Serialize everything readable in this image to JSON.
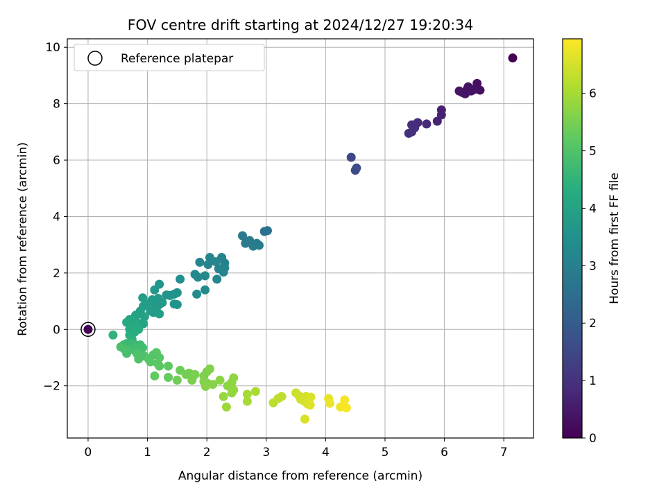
{
  "chart_data": {
    "type": "scatter",
    "title": "FOV centre drift starting at 2024/12/27 19:20:34",
    "xlabel": "Angular distance from reference (arcmin)",
    "ylabel": "Rotation from reference (arcmin)",
    "xlim": [
      -0.35,
      7.5
    ],
    "ylim": [
      -3.85,
      10.3
    ],
    "xticks": [
      0,
      1,
      2,
      3,
      4,
      5,
      6,
      7
    ],
    "xtick_labels": [
      "0",
      "1",
      "2",
      "3",
      "4",
      "5",
      "6",
      "7"
    ],
    "yticks": [
      -2,
      0,
      2,
      4,
      6,
      8,
      10
    ],
    "ytick_labels": [
      "−2",
      "0",
      "2",
      "4",
      "6",
      "8",
      "10"
    ],
    "grid": true,
    "legend": {
      "location": "upper-left",
      "entries": [
        "Reference platepar"
      ]
    },
    "reference_point": {
      "x": 0,
      "y": 0,
      "label": "Reference platepar"
    },
    "colorbar": {
      "label": "Hours from first FF file",
      "colormap": "viridis",
      "range": [
        0,
        6.95
      ],
      "ticks": [
        0,
        1,
        2,
        3,
        4,
        5,
        6
      ],
      "tick_labels": [
        "0",
        "1",
        "2",
        "3",
        "4",
        "5",
        "6"
      ]
    },
    "points": [
      {
        "x": 7.15,
        "y": 9.62,
        "t": 0.0
      },
      {
        "x": 6.6,
        "y": 8.48,
        "t": 0.3
      },
      {
        "x": 6.55,
        "y": 8.72,
        "t": 0.3
      },
      {
        "x": 6.5,
        "y": 8.5,
        "t": 0.35
      },
      {
        "x": 6.45,
        "y": 8.45,
        "t": 0.35
      },
      {
        "x": 6.4,
        "y": 8.6,
        "t": 0.35
      },
      {
        "x": 6.35,
        "y": 8.35,
        "t": 0.4
      },
      {
        "x": 6.3,
        "y": 8.4,
        "t": 0.4
      },
      {
        "x": 6.25,
        "y": 8.45,
        "t": 0.4
      },
      {
        "x": 6.38,
        "y": 8.5,
        "t": 0.38
      },
      {
        "x": 5.95,
        "y": 7.78,
        "t": 0.65
      },
      {
        "x": 5.95,
        "y": 7.6,
        "t": 0.65
      },
      {
        "x": 5.88,
        "y": 7.38,
        "t": 0.7
      },
      {
        "x": 5.7,
        "y": 7.28,
        "t": 0.8
      },
      {
        "x": 5.55,
        "y": 7.33,
        "t": 0.85
      },
      {
        "x": 5.5,
        "y": 7.15,
        "t": 0.9
      },
      {
        "x": 5.45,
        "y": 7.25,
        "t": 0.9
      },
      {
        "x": 5.45,
        "y": 7.0,
        "t": 0.95
      },
      {
        "x": 5.4,
        "y": 6.95,
        "t": 0.95
      },
      {
        "x": 4.43,
        "y": 6.1,
        "t": 1.5
      },
      {
        "x": 4.52,
        "y": 5.72,
        "t": 1.6
      },
      {
        "x": 4.5,
        "y": 5.64,
        "t": 1.6
      },
      {
        "x": 3.02,
        "y": 3.5,
        "t": 2.6
      },
      {
        "x": 2.97,
        "y": 3.47,
        "t": 2.6
      },
      {
        "x": 2.6,
        "y": 3.32,
        "t": 2.8
      },
      {
        "x": 2.65,
        "y": 3.05,
        "t": 2.85
      },
      {
        "x": 2.72,
        "y": 3.15,
        "t": 2.85
      },
      {
        "x": 2.78,
        "y": 2.95,
        "t": 2.9
      },
      {
        "x": 2.84,
        "y": 3.05,
        "t": 2.9
      },
      {
        "x": 2.88,
        "y": 2.98,
        "t": 2.9
      },
      {
        "x": 2.25,
        "y": 2.55,
        "t": 3.05
      },
      {
        "x": 2.3,
        "y": 2.35,
        "t": 3.05
      },
      {
        "x": 2.3,
        "y": 2.18,
        "t": 3.1
      },
      {
        "x": 2.28,
        "y": 2.03,
        "t": 3.1
      },
      {
        "x": 2.2,
        "y": 2.15,
        "t": 3.1
      },
      {
        "x": 2.15,
        "y": 2.4,
        "t": 3.1
      },
      {
        "x": 2.05,
        "y": 2.55,
        "t": 3.15
      },
      {
        "x": 2.02,
        "y": 2.3,
        "t": 3.15
      },
      {
        "x": 1.88,
        "y": 2.38,
        "t": 3.2
      },
      {
        "x": 2.17,
        "y": 1.78,
        "t": 3.2
      },
      {
        "x": 1.97,
        "y": 1.9,
        "t": 3.25
      },
      {
        "x": 1.8,
        "y": 1.95,
        "t": 3.25
      },
      {
        "x": 1.85,
        "y": 1.85,
        "t": 3.25
      },
      {
        "x": 1.97,
        "y": 1.4,
        "t": 3.3
      },
      {
        "x": 1.83,
        "y": 1.25,
        "t": 3.3
      },
      {
        "x": 1.55,
        "y": 1.78,
        "t": 3.45
      },
      {
        "x": 1.5,
        "y": 1.3,
        "t": 3.5
      },
      {
        "x": 1.45,
        "y": 1.25,
        "t": 3.5
      },
      {
        "x": 1.38,
        "y": 1.2,
        "t": 3.55
      },
      {
        "x": 1.32,
        "y": 1.22,
        "t": 3.55
      },
      {
        "x": 1.45,
        "y": 0.9,
        "t": 3.6
      },
      {
        "x": 1.5,
        "y": 0.88,
        "t": 3.6
      },
      {
        "x": 1.2,
        "y": 1.6,
        "t": 3.6
      },
      {
        "x": 1.12,
        "y": 1.4,
        "t": 3.65
      },
      {
        "x": 1.18,
        "y": 1.1,
        "t": 3.7
      },
      {
        "x": 1.25,
        "y": 0.95,
        "t": 3.7
      },
      {
        "x": 1.2,
        "y": 0.88,
        "t": 3.7
      },
      {
        "x": 1.15,
        "y": 0.75,
        "t": 3.75
      },
      {
        "x": 1.08,
        "y": 1.05,
        "t": 3.75
      },
      {
        "x": 1.05,
        "y": 0.95,
        "t": 3.75
      },
      {
        "x": 1.0,
        "y": 0.88,
        "t": 3.8
      },
      {
        "x": 1.05,
        "y": 0.65,
        "t": 3.8
      },
      {
        "x": 1.1,
        "y": 0.6,
        "t": 3.8
      },
      {
        "x": 1.2,
        "y": 0.55,
        "t": 3.85
      },
      {
        "x": 0.92,
        "y": 1.12,
        "t": 3.8
      },
      {
        "x": 0.93,
        "y": 0.82,
        "t": 3.85
      },
      {
        "x": 0.88,
        "y": 0.65,
        "t": 3.9
      },
      {
        "x": 0.85,
        "y": 0.55,
        "t": 3.9
      },
      {
        "x": 0.8,
        "y": 0.5,
        "t": 3.95
      },
      {
        "x": 0.95,
        "y": 0.45,
        "t": 3.95
      },
      {
        "x": 0.93,
        "y": 0.2,
        "t": 4.0
      },
      {
        "x": 0.88,
        "y": 0.2,
        "t": 4.0
      },
      {
        "x": 0.8,
        "y": 0.3,
        "t": 4.05
      },
      {
        "x": 0.75,
        "y": 0.33,
        "t": 4.1
      },
      {
        "x": 0.7,
        "y": 0.35,
        "t": 4.1
      },
      {
        "x": 0.65,
        "y": 0.25,
        "t": 4.15
      },
      {
        "x": 0.72,
        "y": 0.15,
        "t": 4.15
      },
      {
        "x": 0.7,
        "y": 0.0,
        "t": 4.2
      },
      {
        "x": 0.75,
        "y": 0.05,
        "t": 4.2
      },
      {
        "x": 0.85,
        "y": 0.0,
        "t": 4.25
      },
      {
        "x": 0.8,
        "y": 0.15,
        "t": 4.2
      },
      {
        "x": 0.78,
        "y": -0.1,
        "t": 4.3
      },
      {
        "x": 0.7,
        "y": -0.2,
        "t": 4.35
      },
      {
        "x": 0.74,
        "y": -0.35,
        "t": 4.4
      },
      {
        "x": 0.42,
        "y": -0.2,
        "t": 4.5
      },
      {
        "x": 0.6,
        "y": -0.55,
        "t": 4.6
      },
      {
        "x": 0.65,
        "y": -0.5,
        "t": 4.65
      },
      {
        "x": 0.72,
        "y": -0.5,
        "t": 4.7
      },
      {
        "x": 0.8,
        "y": -0.55,
        "t": 4.7
      },
      {
        "x": 0.88,
        "y": -0.55,
        "t": 4.75
      },
      {
        "x": 0.92,
        "y": -0.65,
        "t": 4.8
      },
      {
        "x": 0.82,
        "y": -0.68,
        "t": 4.8
      },
      {
        "x": 0.76,
        "y": -0.72,
        "t": 4.8
      },
      {
        "x": 0.68,
        "y": -0.75,
        "t": 4.85
      },
      {
        "x": 0.65,
        "y": -0.85,
        "t": 4.85
      },
      {
        "x": 0.6,
        "y": -0.68,
        "t": 4.9
      },
      {
        "x": 0.55,
        "y": -0.62,
        "t": 4.9
      },
      {
        "x": 0.82,
        "y": -0.85,
        "t": 4.95
      },
      {
        "x": 0.9,
        "y": -0.9,
        "t": 4.95
      },
      {
        "x": 0.85,
        "y": -1.05,
        "t": 5.0
      },
      {
        "x": 0.95,
        "y": -0.95,
        "t": 5.0
      },
      {
        "x": 1.02,
        "y": -1.05,
        "t": 5.05
      },
      {
        "x": 1.1,
        "y": -0.9,
        "t": 5.05
      },
      {
        "x": 1.15,
        "y": -0.82,
        "t": 5.1
      },
      {
        "x": 1.2,
        "y": -1.0,
        "t": 5.1
      },
      {
        "x": 1.05,
        "y": -1.15,
        "t": 5.1
      },
      {
        "x": 1.17,
        "y": -1.2,
        "t": 5.15
      },
      {
        "x": 1.2,
        "y": -1.3,
        "t": 5.15
      },
      {
        "x": 1.35,
        "y": -1.3,
        "t": 5.2
      },
      {
        "x": 1.12,
        "y": -1.65,
        "t": 5.25
      },
      {
        "x": 1.35,
        "y": -1.7,
        "t": 5.3
      },
      {
        "x": 1.55,
        "y": -1.45,
        "t": 5.35
      },
      {
        "x": 1.5,
        "y": -1.8,
        "t": 5.4
      },
      {
        "x": 1.65,
        "y": -1.6,
        "t": 5.45
      },
      {
        "x": 1.7,
        "y": -1.55,
        "t": 5.45
      },
      {
        "x": 1.75,
        "y": -1.8,
        "t": 5.5
      },
      {
        "x": 1.8,
        "y": -1.6,
        "t": 5.5
      },
      {
        "x": 1.95,
        "y": -1.65,
        "t": 5.55
      },
      {
        "x": 2.0,
        "y": -1.5,
        "t": 5.55
      },
      {
        "x": 2.05,
        "y": -1.4,
        "t": 5.6
      },
      {
        "x": 1.95,
        "y": -1.85,
        "t": 5.6
      },
      {
        "x": 2.0,
        "y": -1.9,
        "t": 5.6
      },
      {
        "x": 1.98,
        "y": -2.02,
        "t": 5.65
      },
      {
        "x": 2.1,
        "y": -1.95,
        "t": 5.65
      },
      {
        "x": 2.22,
        "y": -1.8,
        "t": 5.7
      },
      {
        "x": 2.35,
        "y": -2.0,
        "t": 5.7
      },
      {
        "x": 2.42,
        "y": -1.88,
        "t": 5.75
      },
      {
        "x": 2.45,
        "y": -1.72,
        "t": 5.75
      },
      {
        "x": 2.45,
        "y": -2.15,
        "t": 5.8
      },
      {
        "x": 2.42,
        "y": -2.25,
        "t": 5.8
      },
      {
        "x": 2.28,
        "y": -2.38,
        "t": 5.85
      },
      {
        "x": 2.33,
        "y": -2.75,
        "t": 5.9
      },
      {
        "x": 2.68,
        "y": -2.3,
        "t": 6.0
      },
      {
        "x": 2.68,
        "y": -2.55,
        "t": 6.0
      },
      {
        "x": 2.82,
        "y": -2.2,
        "t": 6.05
      },
      {
        "x": 3.12,
        "y": -2.6,
        "t": 6.2
      },
      {
        "x": 3.2,
        "y": -2.45,
        "t": 6.25
      },
      {
        "x": 3.26,
        "y": -2.38,
        "t": 6.25
      },
      {
        "x": 3.5,
        "y": -2.25,
        "t": 6.4
      },
      {
        "x": 3.55,
        "y": -2.35,
        "t": 6.45
      },
      {
        "x": 3.58,
        "y": -2.48,
        "t": 6.45
      },
      {
        "x": 3.64,
        "y": -2.55,
        "t": 6.5
      },
      {
        "x": 3.67,
        "y": -2.38,
        "t": 6.5
      },
      {
        "x": 3.7,
        "y": -2.65,
        "t": 6.55
      },
      {
        "x": 3.75,
        "y": -2.4,
        "t": 6.55
      },
      {
        "x": 3.74,
        "y": -2.68,
        "t": 6.6
      },
      {
        "x": 3.65,
        "y": -3.18,
        "t": 6.55
      },
      {
        "x": 4.05,
        "y": -2.45,
        "t": 6.7
      },
      {
        "x": 4.07,
        "y": -2.62,
        "t": 6.75
      },
      {
        "x": 4.25,
        "y": -2.75,
        "t": 6.8
      },
      {
        "x": 4.32,
        "y": -2.5,
        "t": 6.85
      },
      {
        "x": 4.3,
        "y": -2.7,
        "t": 6.85
      },
      {
        "x": 4.35,
        "y": -2.78,
        "t": 6.9
      }
    ]
  }
}
